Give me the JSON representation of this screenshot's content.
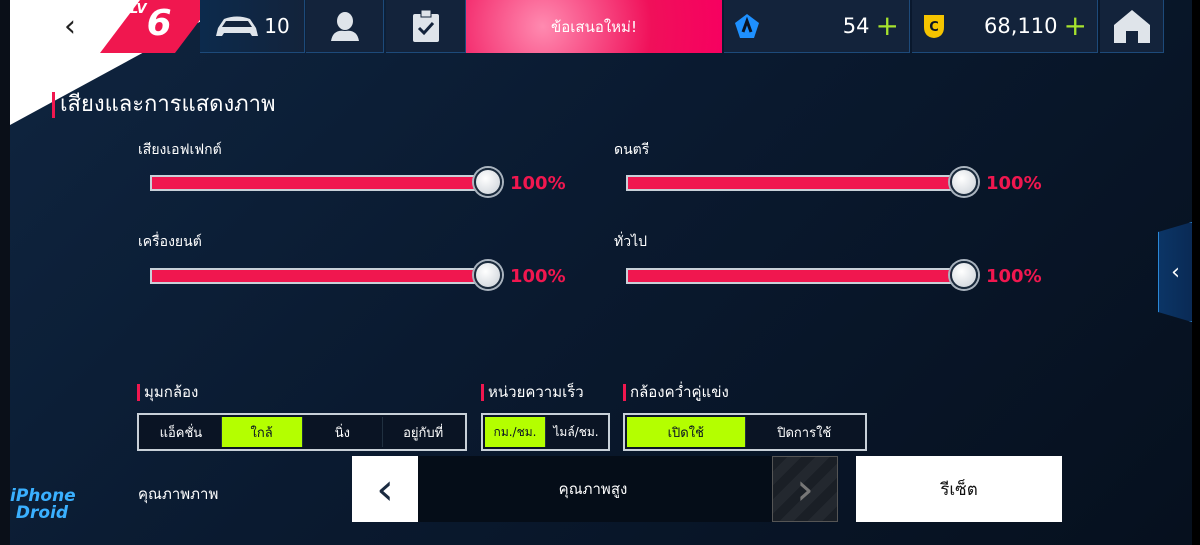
{
  "header": {
    "back_icon": "chevron-left-icon",
    "level_prefix": "LV",
    "level": "6",
    "cars_count": "10",
    "offer_label": "ข้อเสนอใหม่!",
    "gems": "54",
    "coins": "68,110",
    "plus": "+"
  },
  "colors": {
    "accent": "#f0174f",
    "selected": "#b4ff00",
    "gem": "#1e90ff",
    "coin": "#f5c400"
  },
  "section_title": "เสียงและการแสดงภาพ",
  "sliders": [
    {
      "label": "เสียงเอฟเฟกต์",
      "value": 100,
      "display": "100%"
    },
    {
      "label": "ดนตรี",
      "value": 100,
      "display": "100%"
    },
    {
      "label": "เครื่องยนต์",
      "value": 100,
      "display": "100%"
    },
    {
      "label": "ทั่วไป",
      "value": 100,
      "display": "100%"
    }
  ],
  "camera": {
    "label": "มุมกล้อง",
    "options": [
      "แอ็คชั่น",
      "ใกล้",
      "นิ่ง",
      "อยู่กับที่"
    ],
    "selected": "ใกล้"
  },
  "speed": {
    "label": "หน่วยความเร็ว",
    "options": [
      "กม./ชม.",
      "ไมล์/ชม."
    ],
    "selected": "กม./ชม."
  },
  "rival_cam": {
    "label": "กล้องคว่ำคู่แข่ง",
    "options": [
      "เปิดใช้",
      "ปิดการใช้"
    ],
    "selected": "เปิดใช้"
  },
  "quality": {
    "label": "คุณภาพภาพ",
    "value": "คุณภาพสูง"
  },
  "reset_label": "รีเซ็ต",
  "watermark": "iPhone Droid"
}
